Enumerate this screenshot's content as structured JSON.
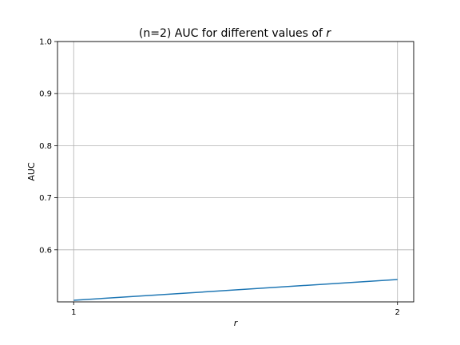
{
  "chart_data": {
    "type": "line",
    "title_prefix": "(n=2) AUC for different values of ",
    "title_var": "r",
    "xlabel": "r",
    "ylabel": "AUC",
    "x": [
      1,
      2
    ],
    "series": [
      {
        "values": [
          0.503,
          0.543
        ]
      }
    ],
    "xlim": [
      0.95,
      2.05
    ],
    "ylim": [
      0.5,
      1.0
    ],
    "xticks": [
      1,
      2
    ],
    "yticks": [
      0.6,
      0.7,
      0.8,
      0.9,
      1.0
    ],
    "ytick_labels": [
      "0.6",
      "0.7",
      "0.8",
      "0.9",
      "1.0"
    ],
    "grid": true,
    "line_color": "#1f77b4",
    "grid_color": "#b0b0b0"
  }
}
